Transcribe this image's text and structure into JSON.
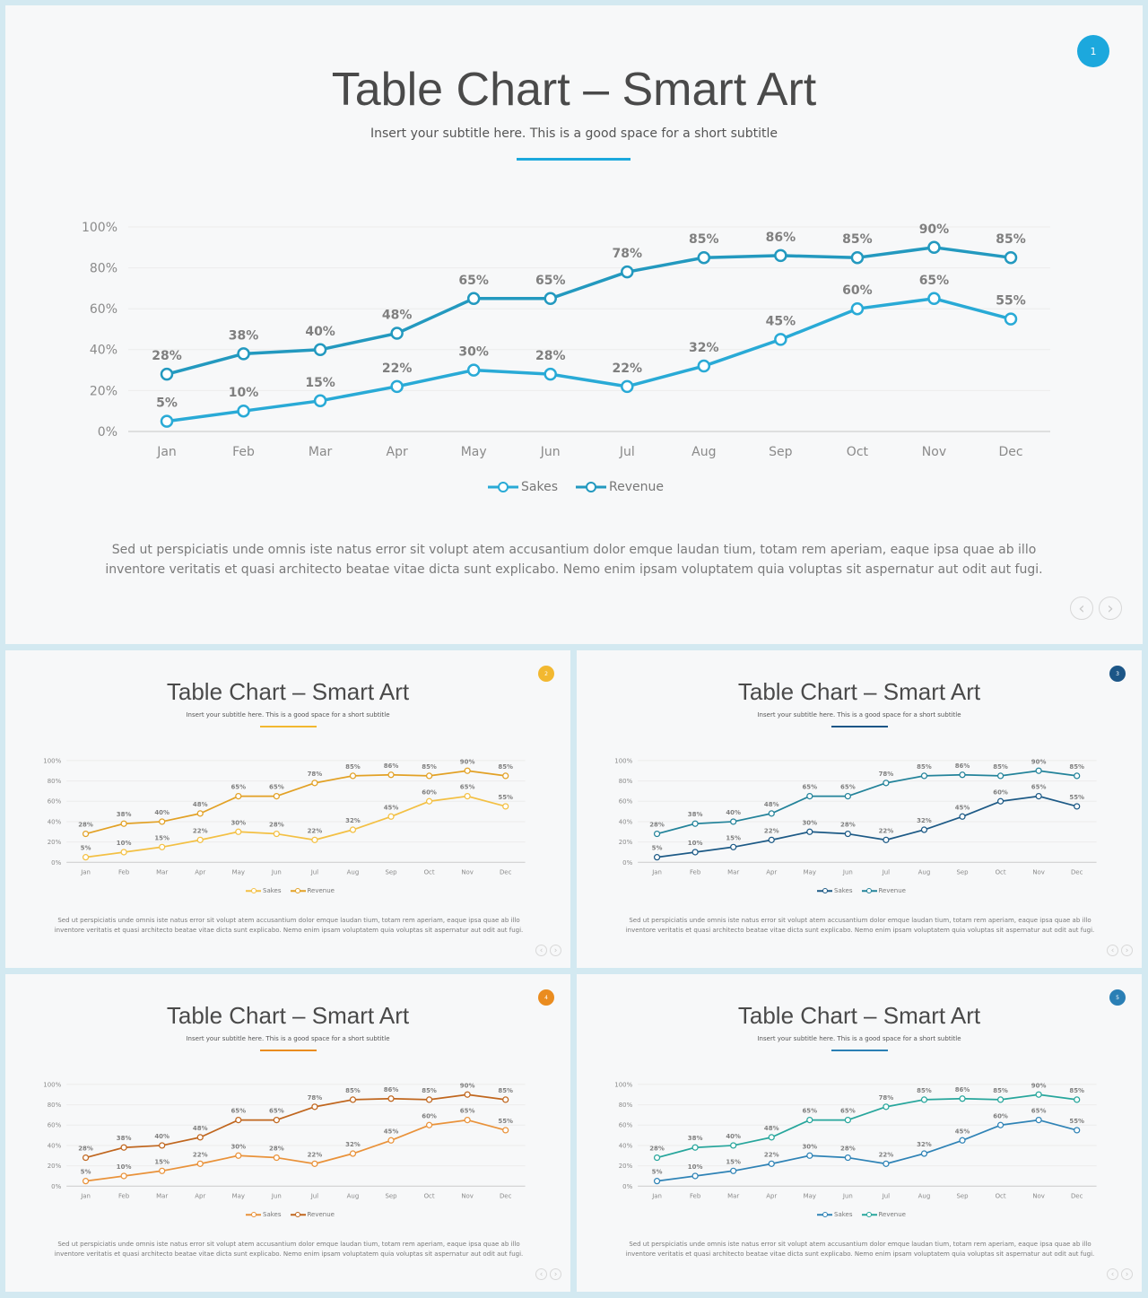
{
  "slides": [
    {
      "id": "main",
      "title": "Table Chart – Smart Art",
      "subtitle": "Insert your subtitle here. This is a good space for a short subtitle",
      "badge_number": "1",
      "accent_color": "#1ca8dd",
      "body_text": "Sed ut perspiciatis unde omnis iste natus error sit volupt atem accusantium dolor emque laudan tium, totam rem aperiam, eaque ipsa quae ab illo inventore veritatis et quasi architecto beatae vitae dicta sunt explicabo. Nemo enim ipsam voluptatem quia voluptas sit aspernatur aut odit aut fugi.",
      "nav": {
        "prev_icon": "‹",
        "next_icon": "›"
      },
      "series_colors": {
        "Sakes": "#29aad6",
        "Revenue": "#2399bf"
      },
      "legend": {
        "labels": [
          "Sakes",
          "Revenue"
        ]
      }
    },
    {
      "id": "yellow",
      "title": "Table Chart – Smart Art",
      "subtitle": "Insert your subtitle here. This is a good space for a short subtitle",
      "badge_number": "2",
      "accent_color": "#f2b830",
      "body_text": "Sed ut perspiciatis unde omnis iste natus error sit volupt atem accusantium dolor emque laudan tium, totam rem aperiam, eaque ipsa quae ab illo inventore veritatis et quasi architecto beatae vitae dicta sunt explicabo. Nemo enim ipsam voluptatem quia voluptas sit aspernatur aut odit aut fugi.",
      "nav": {
        "prev_icon": "‹",
        "next_icon": "›"
      },
      "series_colors": {
        "Sakes": "#f3c044",
        "Revenue": "#e2a125"
      },
      "legend": {
        "labels": [
          "Sakes",
          "Revenue"
        ]
      }
    },
    {
      "id": "navy",
      "title": "Table Chart – Smart Art",
      "subtitle": "Insert your subtitle here. This is a good space for a short subtitle",
      "badge_number": "3",
      "accent_color": "#1c5687",
      "body_text": "Sed ut perspiciatis unde omnis iste natus error sit volupt atem accusantium dolor emque laudan tium, totam rem aperiam, eaque ipsa quae ab illo inventore veritatis et quasi architecto beatae vitae dicta sunt explicabo. Nemo enim ipsam voluptatem quia voluptas sit aspernatur aut odit aut fugi.",
      "nav": {
        "prev_icon": "‹",
        "next_icon": "›"
      },
      "series_colors": {
        "Sakes": "#1d5a86",
        "Revenue": "#23839a"
      },
      "legend": {
        "labels": [
          "Sakes",
          "Revenue"
        ]
      }
    },
    {
      "id": "orange",
      "title": "Table Chart – Smart Art",
      "subtitle": "Insert your subtitle here. This is a good space for a short subtitle",
      "badge_number": "4",
      "accent_color": "#ea8c1f",
      "body_text": "Sed ut perspiciatis unde omnis iste natus error sit volupt atem accusantium dolor emque laudan tium, totam rem aperiam, eaque ipsa quae ab illo inventore veritatis et quasi architecto beatae vitae dicta sunt explicabo. Nemo enim ipsam voluptatem quia voluptas sit aspernatur aut odit aut fugi.",
      "nav": {
        "prev_icon": "‹",
        "next_icon": "›"
      },
      "series_colors": {
        "Sakes": "#e9923a",
        "Revenue": "#c0661e"
      },
      "legend": {
        "labels": [
          "Sakes",
          "Revenue"
        ]
      }
    },
    {
      "id": "teal",
      "title": "Table Chart – Smart Art",
      "subtitle": "Insert your subtitle here. This is a good space for a short subtitle",
      "badge_number": "5",
      "accent_color": "#2a7fb5",
      "body_text": "Sed ut perspiciatis unde omnis iste natus error sit volupt atem accusantium dolor emque laudan tium, totam rem aperiam, eaque ipsa quae ab illo inventore veritatis et quasi architecto beatae vitae dicta sunt explicabo. Nemo enim ipsam voluptatem quia voluptas sit aspernatur aut odit aut fugi.",
      "nav": {
        "prev_icon": "‹",
        "next_icon": "›"
      },
      "series_colors": {
        "Sakes": "#2f83b6",
        "Revenue": "#27a69c"
      },
      "legend": {
        "labels": [
          "Sakes",
          "Revenue"
        ]
      }
    }
  ],
  "chart_data": {
    "type": "line",
    "x": [
      "Jan",
      "Feb",
      "Mar",
      "Apr",
      "May",
      "Jun",
      "Jul",
      "Aug",
      "Sep",
      "Oct",
      "Nov",
      "Dec"
    ],
    "yticks": [
      "0%",
      "20%",
      "40%",
      "60%",
      "80%",
      "100%"
    ],
    "ylim": [
      0,
      100
    ],
    "grid": true,
    "legend_position": "bottom",
    "series": [
      {
        "name": "Sakes",
        "values": [
          5,
          10,
          15,
          22,
          30,
          28,
          22,
          32,
          45,
          60,
          65,
          55
        ],
        "labels": [
          "5%",
          "10%",
          "15%",
          "22%",
          "30%",
          "28%",
          "22%",
          "32%",
          "45%",
          "60%",
          "65%",
          "55%"
        ]
      },
      {
        "name": "Revenue",
        "values": [
          28,
          38,
          40,
          48,
          65,
          65,
          78,
          85,
          86,
          85,
          90,
          85
        ],
        "labels": [
          "28%",
          "38%",
          "40%",
          "48%",
          "65%",
          "65%",
          "78%",
          "85%",
          "86%",
          "85%",
          "90%",
          "85%"
        ]
      }
    ]
  }
}
